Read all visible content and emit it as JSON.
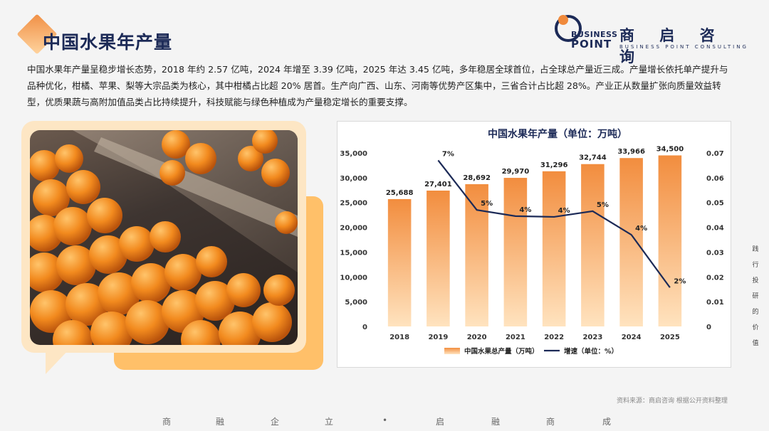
{
  "header": {
    "title": "中国水果年产量",
    "logo_cn": "商 启 咨 询",
    "logo_business": "BUSINESS",
    "logo_point": "POINT",
    "logo_en": "BUSINESS POINT CONSULTING"
  },
  "intro": "中国水果年产量呈稳步增长态势，2018 年约 2.57 亿吨，2024 年增至 3.39 亿吨，2025 年达 3.45 亿吨，多年稳居全球首位，占全球总产量近三成。产量增长依托单产提升与品种优化，柑橘、苹果、梨等大宗品类为核心，其中柑橘占比超 20% 居首。生产向广西、山东、河南等优势产区集中，三省合计占比超 28%。产业正从数量扩张向质量效益转型，优质果蔬与高附加值品类占比持续提升，科技赋能与绿色种植成为产量稳定增长的重要支撑。",
  "chart_data": {
    "type": "bar",
    "title": "中国水果年产量（单位：万吨）",
    "categories": [
      "2018",
      "2019",
      "2020",
      "2021",
      "2022",
      "2023",
      "2024",
      "2025"
    ],
    "series": [
      {
        "name": "中国水果总产量（万吨）",
        "type": "bar",
        "values": [
          25688,
          27401,
          28692,
          29970,
          31296,
          32744,
          33966,
          34500
        ],
        "labels": [
          "25,688",
          "27,401",
          "28,692",
          "29,970",
          "31,296",
          "32,744",
          "33,966",
          "34,500"
        ]
      },
      {
        "name": "增速（单位：%）",
        "type": "line",
        "axis": "right",
        "values": [
          null,
          0.067,
          0.047,
          0.0445,
          0.0442,
          0.0465,
          0.037,
          0.0157
        ],
        "labels": [
          "",
          "7%",
          "5%",
          "4%",
          "4%",
          "5%",
          "4%",
          "2%"
        ]
      }
    ],
    "ylim": [
      0,
      35000
    ],
    "yticks": [
      "0",
      "5,000",
      "10,000",
      "15,000",
      "20,000",
      "25,000",
      "30,000",
      "35,000"
    ],
    "y2lim": [
      0,
      0.07
    ],
    "y2ticks": [
      "0",
      "0.01",
      "0.02",
      "0.03",
      "0.04",
      "0.05",
      "0.06",
      "0.07"
    ],
    "legend": "bottom",
    "colors": {
      "bar_top": "#f28d3e",
      "bar_bottom": "#ffe3bf",
      "line": "#1c2a57"
    }
  },
  "source": "资料来源：商启咨询 根据公开资料整理",
  "footer": [
    "商",
    "融",
    "企",
    "立",
    "•",
    "启",
    "融",
    "商",
    "成"
  ],
  "vertical_text": [
    "践",
    "行",
    "投",
    "研",
    "的",
    "价",
    "值"
  ]
}
